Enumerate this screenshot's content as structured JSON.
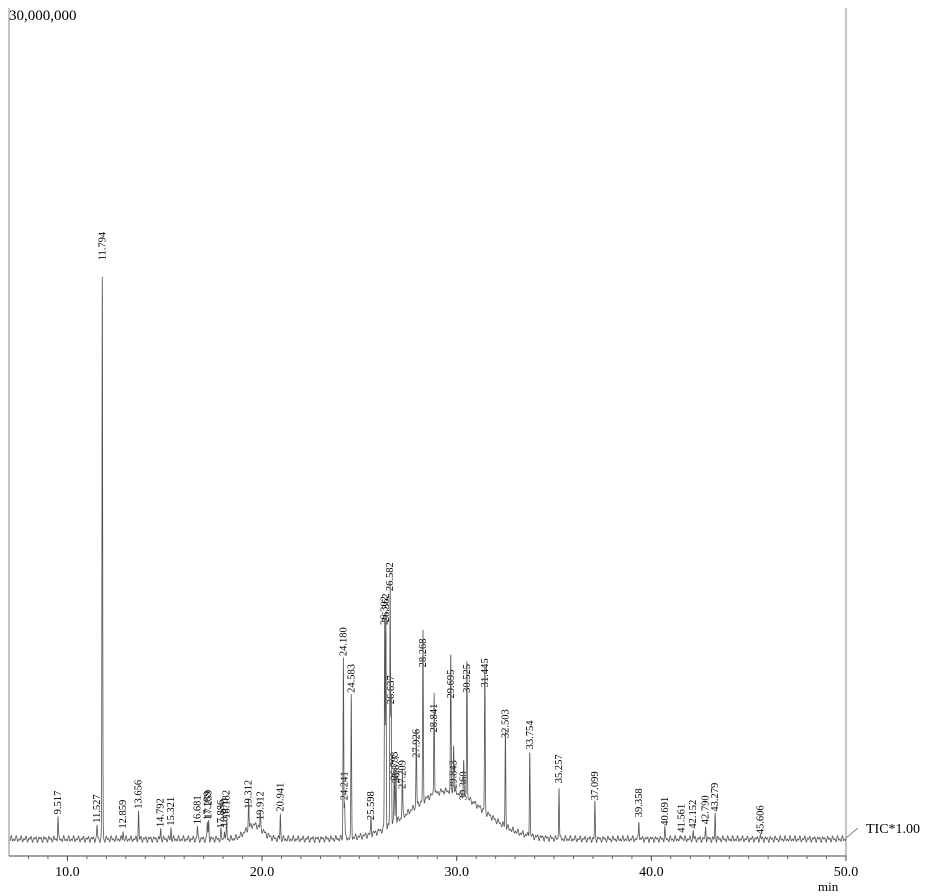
{
  "chart_data": {
    "type": "line",
    "title": "",
    "ylabel_top": "30,000,000",
    "xlabel": "min",
    "series_label": "TIC*1.00",
    "xlim": [
      7.0,
      50.0
    ],
    "ylim": [
      0,
      30000000
    ],
    "x_ticks": [
      "10.0",
      "20.0",
      "30.0",
      "40.0",
      "50.0"
    ],
    "x_tick_values": [
      10,
      20,
      30,
      40,
      50
    ],
    "baseline": 600000,
    "peaks": [
      {
        "label": "9.517",
        "x": 9.517,
        "y": 1400000
      },
      {
        "label": "11.527",
        "x": 11.527,
        "y": 1100000
      },
      {
        "label": "11.794",
        "x": 11.794,
        "y": 21000000
      },
      {
        "label": "12.859",
        "x": 12.859,
        "y": 900000
      },
      {
        "label": "13.656",
        "x": 13.656,
        "y": 1600000
      },
      {
        "label": "14.792",
        "x": 14.792,
        "y": 950000
      },
      {
        "label": "15.321",
        "x": 15.321,
        "y": 1000000
      },
      {
        "label": "16.681",
        "x": 16.681,
        "y": 1050000
      },
      {
        "label": "17.189",
        "x": 17.189,
        "y": 1200000
      },
      {
        "label": "17.259",
        "x": 17.259,
        "y": 1250000
      },
      {
        "label": "17.886",
        "x": 17.886,
        "y": 900000
      },
      {
        "label": "18.070",
        "x": 18.07,
        "y": 950000
      },
      {
        "label": "18.182",
        "x": 18.182,
        "y": 1250000
      },
      {
        "label": "19.312",
        "x": 19.312,
        "y": 1600000
      },
      {
        "label": "19.912",
        "x": 19.912,
        "y": 1200000
      },
      {
        "label": "20.941",
        "x": 20.941,
        "y": 1500000
      },
      {
        "label": "24.180",
        "x": 24.18,
        "y": 7000000
      },
      {
        "label": "24.241",
        "x": 24.241,
        "y": 1900000
      },
      {
        "label": "24.583",
        "x": 24.583,
        "y": 5700000
      },
      {
        "label": "25.598",
        "x": 25.598,
        "y": 1200000
      },
      {
        "label": "26.302",
        "x": 26.302,
        "y": 8100000
      },
      {
        "label": "26.362",
        "x": 26.362,
        "y": 8200000
      },
      {
        "label": "26.582",
        "x": 26.582,
        "y": 9300000
      },
      {
        "label": "26.637",
        "x": 26.637,
        "y": 5300000
      },
      {
        "label": "26.793",
        "x": 26.793,
        "y": 2600000
      },
      {
        "label": "26.877",
        "x": 26.877,
        "y": 2500000
      },
      {
        "label": "27.209",
        "x": 27.209,
        "y": 2300000
      },
      {
        "label": "27.926",
        "x": 27.926,
        "y": 3400000
      },
      {
        "label": "28.268",
        "x": 28.268,
        "y": 6600000
      },
      {
        "label": "28.841",
        "x": 28.841,
        "y": 4300000
      },
      {
        "label": "29.695",
        "x": 29.695,
        "y": 5500000
      },
      {
        "label": "29.843",
        "x": 29.843,
        "y": 2300000
      },
      {
        "label": "30.360",
        "x": 30.36,
        "y": 1900000
      },
      {
        "label": "30.525",
        "x": 30.525,
        "y": 5700000
      },
      {
        "label": "31.445",
        "x": 31.445,
        "y": 5900000
      },
      {
        "label": "32.503",
        "x": 32.503,
        "y": 4100000
      },
      {
        "label": "33.754",
        "x": 33.754,
        "y": 3700000
      },
      {
        "label": "35.257",
        "x": 35.257,
        "y": 2500000
      },
      {
        "label": "37.099",
        "x": 37.099,
        "y": 1900000
      },
      {
        "label": "39.358",
        "x": 39.358,
        "y": 1300000
      },
      {
        "label": "40.691",
        "x": 40.691,
        "y": 1000000
      },
      {
        "label": "41.561",
        "x": 41.561,
        "y": 750000
      },
      {
        "label": "42.152",
        "x": 42.152,
        "y": 900000
      },
      {
        "label": "42.790",
        "x": 42.79,
        "y": 1050000
      },
      {
        "label": "43.279",
        "x": 43.279,
        "y": 1500000
      },
      {
        "label": "45.606",
        "x": 45.606,
        "y": 700000
      }
    ],
    "hump": {
      "center": 29.5,
      "width": 2.6,
      "height": 1700000
    }
  }
}
